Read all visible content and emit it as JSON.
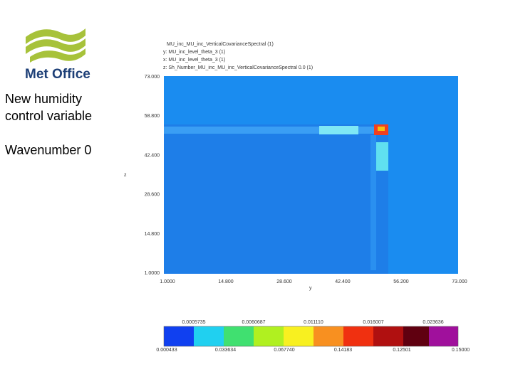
{
  "logo": "Met Office",
  "side_text": [
    "New humidity control variable",
    "Wavenumber 0"
  ],
  "plot": {
    "header": [
      "MU_inc_MU_inc_VerticalCovarianceSpectral (1)",
      "y: MU_inc_level_theta_3 (1)",
      "x: MU_inc_level_theta_3 (1)",
      "z: Sh_Number_MU_inc_MU_inc_VerticalCovarianceSpectral 0.0 (1)"
    ],
    "y_label": "z",
    "x_label": "y",
    "y_ticks": [
      "73.000",
      "58.800",
      "42.400",
      "28.600",
      "14.800",
      "1.0000"
    ],
    "x_ticks": [
      "1.0000",
      "14.800",
      "28.600",
      "42.400",
      "56.200",
      "73.000"
    ]
  },
  "colorbar": {
    "top_labels": [
      "0.0005735",
      "0.0060687",
      "0.011110",
      "0.016007",
      "0.023636"
    ],
    "bottom_labels": [
      "0.000433",
      "0.033634",
      "0.067740",
      "0.14183",
      "0.12501",
      "0.15000"
    ]
  }
}
